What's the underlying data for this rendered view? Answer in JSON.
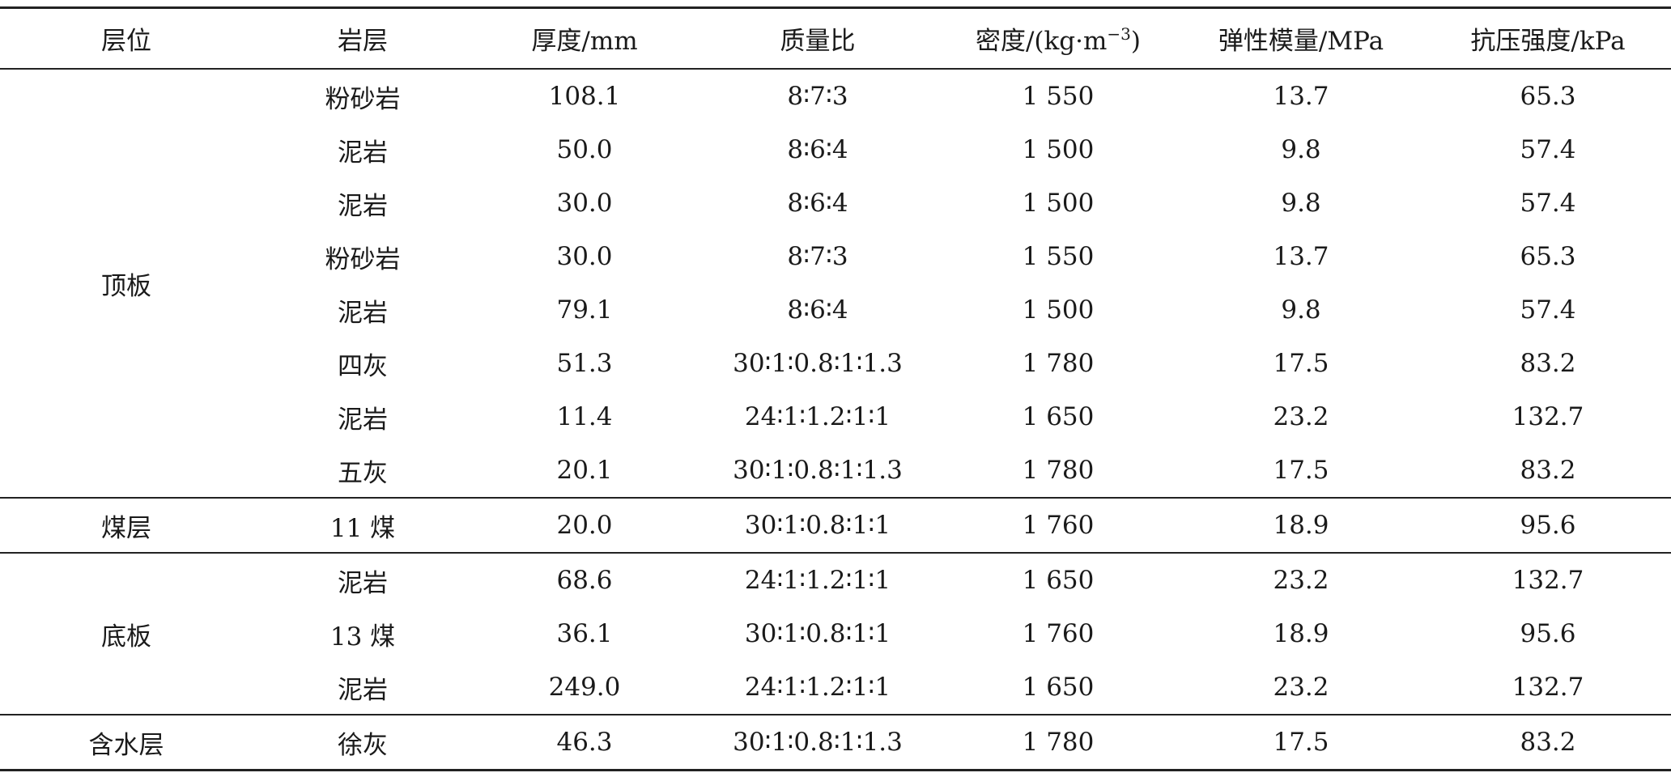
{
  "headers": {
    "layer": "层位",
    "rock": "岩层",
    "thickness": "厚度/mm",
    "mass_ratio": "质量比",
    "density_prefix": "密度/(kg·m",
    "density_sup": "−3",
    "density_suffix": ")",
    "modulus": "弹性模量/MPa",
    "strength": "抗压强度/kPa"
  },
  "groups": [
    {
      "name": "顶板",
      "rows": [
        {
          "rock": "粉砂岩",
          "thickness": "108.1",
          "ratio": "8∶7∶3",
          "density": "1 550",
          "modulus": "13.7",
          "strength": "65.3"
        },
        {
          "rock": "泥岩",
          "thickness": "50.0",
          "ratio": "8∶6∶4",
          "density": "1 500",
          "modulus": "9.8",
          "strength": "57.4"
        },
        {
          "rock": "泥岩",
          "thickness": "30.0",
          "ratio": "8∶6∶4",
          "density": "1 500",
          "modulus": "9.8",
          "strength": "57.4"
        },
        {
          "rock": "粉砂岩",
          "thickness": "30.0",
          "ratio": "8∶7∶3",
          "density": "1 550",
          "modulus": "13.7",
          "strength": "65.3"
        },
        {
          "rock": "泥岩",
          "thickness": "79.1",
          "ratio": "8∶6∶4",
          "density": "1 500",
          "modulus": "9.8",
          "strength": "57.4"
        },
        {
          "rock": "四灰",
          "thickness": "51.3",
          "ratio": "30∶1∶0.8∶1∶1.3",
          "density": "1 780",
          "modulus": "17.5",
          "strength": "83.2"
        },
        {
          "rock": "泥岩",
          "thickness": "11.4",
          "ratio": "24∶1∶1.2∶1∶1",
          "density": "1 650",
          "modulus": "23.2",
          "strength": "132.7"
        },
        {
          "rock": "五灰",
          "thickness": "20.1",
          "ratio": "30∶1∶0.8∶1∶1.3",
          "density": "1 780",
          "modulus": "17.5",
          "strength": "83.2"
        }
      ]
    },
    {
      "name": "煤层",
      "rows": [
        {
          "rock": "11 煤",
          "thickness": "20.0",
          "ratio": "30∶1∶0.8∶1∶1",
          "density": "1 760",
          "modulus": "18.9",
          "strength": "95.6"
        }
      ]
    },
    {
      "name": "底板",
      "rows": [
        {
          "rock": "泥岩",
          "thickness": "68.6",
          "ratio": "24∶1∶1.2∶1∶1",
          "density": "1 650",
          "modulus": "23.2",
          "strength": "132.7"
        },
        {
          "rock": "13 煤",
          "thickness": "36.1",
          "ratio": "30∶1∶0.8∶1∶1",
          "density": "1 760",
          "modulus": "18.9",
          "strength": "95.6"
        },
        {
          "rock": "泥岩",
          "thickness": "249.0",
          "ratio": "24∶1∶1.2∶1∶1",
          "density": "1 650",
          "modulus": "23.2",
          "strength": "132.7"
        }
      ]
    },
    {
      "name": "含水层",
      "rows": [
        {
          "rock": "徐灰",
          "thickness": "46.3",
          "ratio": "30∶1∶0.8∶1∶1.3",
          "density": "1 780",
          "modulus": "17.5",
          "strength": "83.2"
        }
      ]
    }
  ]
}
